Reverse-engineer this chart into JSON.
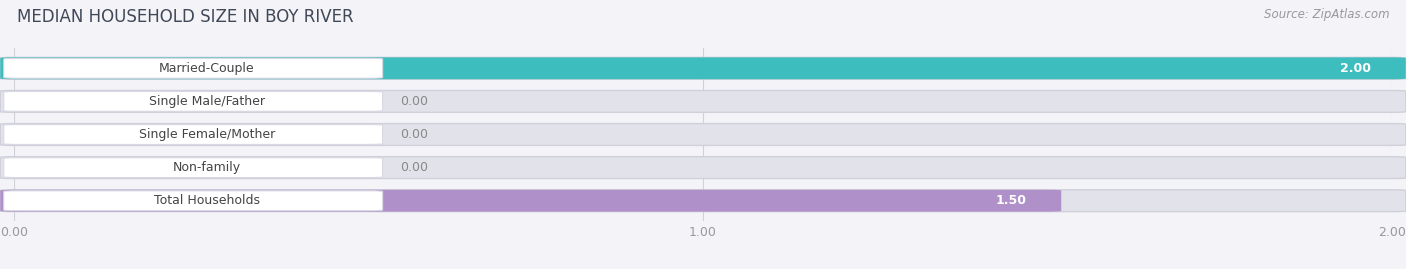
{
  "title": "MEDIAN HOUSEHOLD SIZE IN BOY RIVER",
  "source": "Source: ZipAtlas.com",
  "categories": [
    "Married-Couple",
    "Single Male/Father",
    "Single Female/Mother",
    "Non-family",
    "Total Households"
  ],
  "values": [
    2.0,
    0.0,
    0.0,
    0.0,
    1.5
  ],
  "bar_colors": [
    "#3dbdbd",
    "#a0b4e0",
    "#f07890",
    "#f5c080",
    "#b090c8"
  ],
  "xlim_max": 2.0,
  "xticks": [
    0.0,
    1.0,
    2.0
  ],
  "xtick_labels": [
    "0.00",
    "1.00",
    "2.00"
  ],
  "bg_color": "#f4f4f8",
  "bar_bg_color": "#e2e2ea",
  "title_fontsize": 12,
  "source_fontsize": 8.5,
  "tick_fontsize": 9,
  "value_fontsize": 9,
  "label_fontsize": 9,
  "label_bg": "#ffffff"
}
